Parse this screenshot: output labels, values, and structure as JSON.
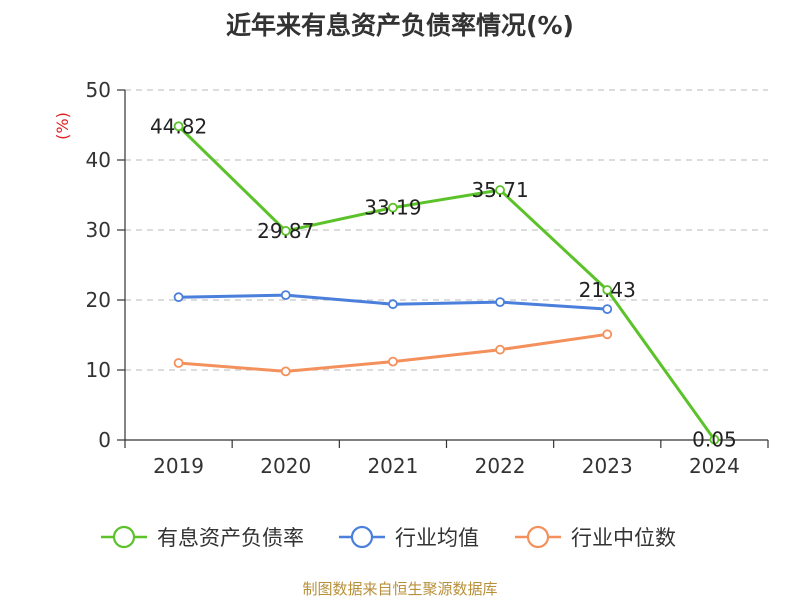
{
  "chart_data": {
    "type": "line",
    "title": "近年来有息资产负债率情况(%)",
    "ylabel": "(%)",
    "xlabel": "",
    "categories": [
      "2019",
      "2020",
      "2021",
      "2022",
      "2023",
      "2024"
    ],
    "ylim": [
      0,
      50
    ],
    "yticks": [
      0,
      10,
      20,
      30,
      40,
      50
    ],
    "grid": true,
    "legend_position": "bottom",
    "series": [
      {
        "name": "有息资产负债率",
        "color": "#5cc22a",
        "values": [
          44.82,
          29.87,
          33.19,
          35.71,
          21.43,
          0.05
        ],
        "labels": [
          "44.82",
          "29.87",
          "33.19",
          "35.71",
          "21.43",
          "0.05"
        ]
      },
      {
        "name": "行业均值",
        "color": "#4a7fdc",
        "values": [
          20.4,
          20.7,
          19.4,
          19.7,
          18.7,
          null
        ]
      },
      {
        "name": "行业中位数",
        "color": "#f4905c",
        "values": [
          11.0,
          9.8,
          11.2,
          12.9,
          15.1,
          null
        ]
      }
    ],
    "source": "制图数据来自恒生聚源数据库"
  }
}
